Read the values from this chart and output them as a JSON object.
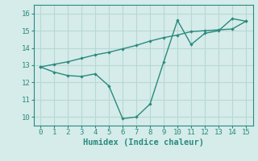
{
  "xlabel": "Humidex (Indice chaleur)",
  "line1_x": [
    0,
    1,
    2,
    3,
    4,
    5,
    6,
    7,
    8,
    9,
    10,
    11,
    12,
    13,
    14,
    15
  ],
  "line1_y": [
    12.9,
    12.6,
    12.4,
    12.35,
    12.5,
    11.8,
    9.9,
    10.0,
    10.75,
    13.2,
    15.6,
    14.2,
    14.85,
    15.0,
    15.7,
    15.55
  ],
  "line2_x": [
    0,
    1,
    2,
    3,
    4,
    5,
    6,
    7,
    8,
    9,
    10,
    11,
    12,
    13,
    14,
    15
  ],
  "line2_y": [
    12.9,
    13.05,
    13.2,
    13.4,
    13.6,
    13.75,
    13.95,
    14.15,
    14.4,
    14.6,
    14.75,
    14.95,
    15.0,
    15.05,
    15.1,
    15.55
  ],
  "line_color": "#2a8a7e",
  "background_color": "#d5ecea",
  "grid_color": "#b8d8d4",
  "xlim": [
    -0.5,
    15.5
  ],
  "ylim": [
    9.5,
    16.5
  ],
  "xticks": [
    0,
    1,
    2,
    3,
    4,
    5,
    6,
    7,
    8,
    9,
    10,
    11,
    12,
    13,
    14,
    15
  ],
  "yticks": [
    10,
    11,
    12,
    13,
    14,
    15,
    16
  ],
  "tick_fontsize": 6.5,
  "xlabel_fontsize": 7.5,
  "marker": "D",
  "markersize": 2.2,
  "linewidth": 1.0
}
